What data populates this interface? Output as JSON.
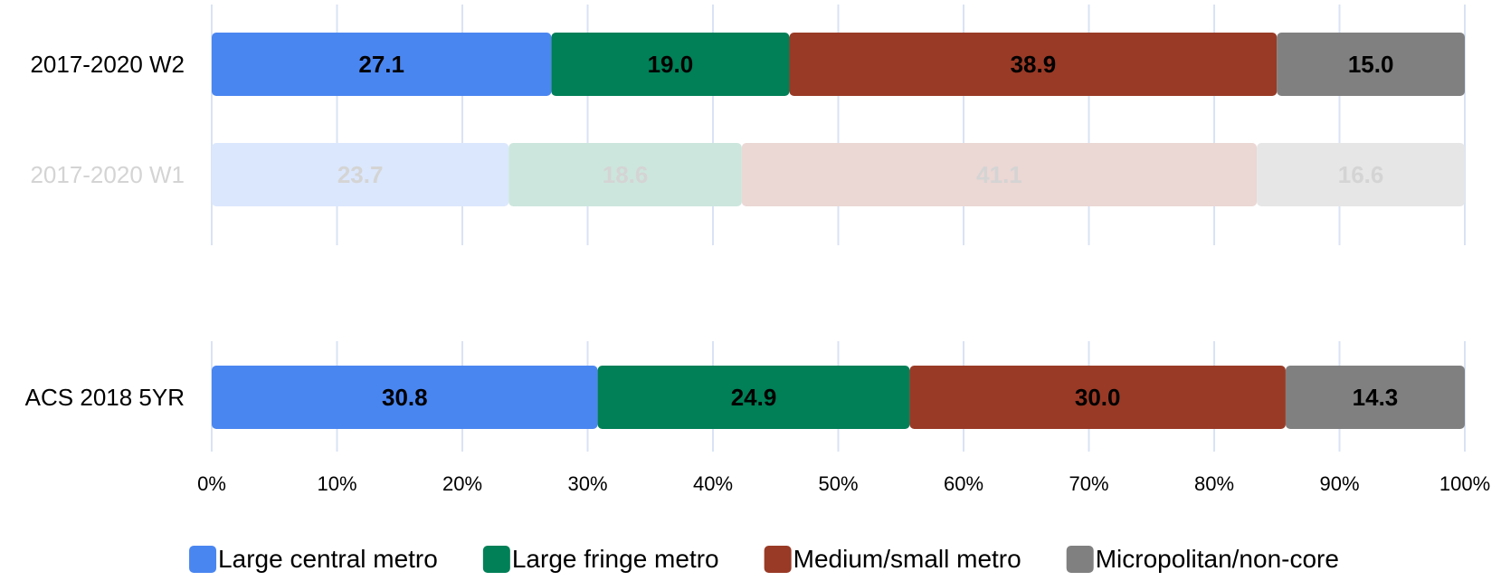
{
  "chart_data": {
    "type": "bar",
    "orientation": "horizontal",
    "stacked": true,
    "percent_stacked": true,
    "title": "",
    "xlabel": "",
    "ylabel": "",
    "xlim": [
      0,
      100
    ],
    "x_ticks": [
      "0%",
      "10%",
      "20%",
      "30%",
      "40%",
      "50%",
      "60%",
      "70%",
      "80%",
      "90%",
      "100%"
    ],
    "grid": true,
    "legend_position": "bottom",
    "categories": [
      "2017-2020 W2",
      "2017-2020 W1",
      "ACS 2018 5YR"
    ],
    "highlighted": [
      true,
      false,
      true
    ],
    "series": [
      {
        "name": "Large central metro",
        "color": "#4a86f0",
        "faded_color": "#dbe7fc",
        "values": [
          27.1,
          23.7,
          30.8
        ],
        "labels": [
          "27.1",
          "23.7",
          "30.8"
        ]
      },
      {
        "name": "Large fringe metro",
        "color": "#017f57",
        "faded_color": "#cce6dd",
        "values": [
          19.0,
          18.6,
          24.9
        ],
        "labels": [
          "19.0",
          "18.6",
          "24.9"
        ]
      },
      {
        "name": "Medium/small metro",
        "color": "#993a26",
        "faded_color": "#ebd7d4",
        "values": [
          38.9,
          41.1,
          30.0
        ],
        "labels": [
          "38.9",
          "41.1",
          "30.0"
        ]
      },
      {
        "name": "Micropolitan/non-core",
        "color": "#808080",
        "faded_color": "#e6e6e6",
        "values": [
          15.0,
          16.6,
          14.3
        ],
        "labels": [
          "15.0",
          "16.6",
          "14.3"
        ]
      }
    ]
  }
}
